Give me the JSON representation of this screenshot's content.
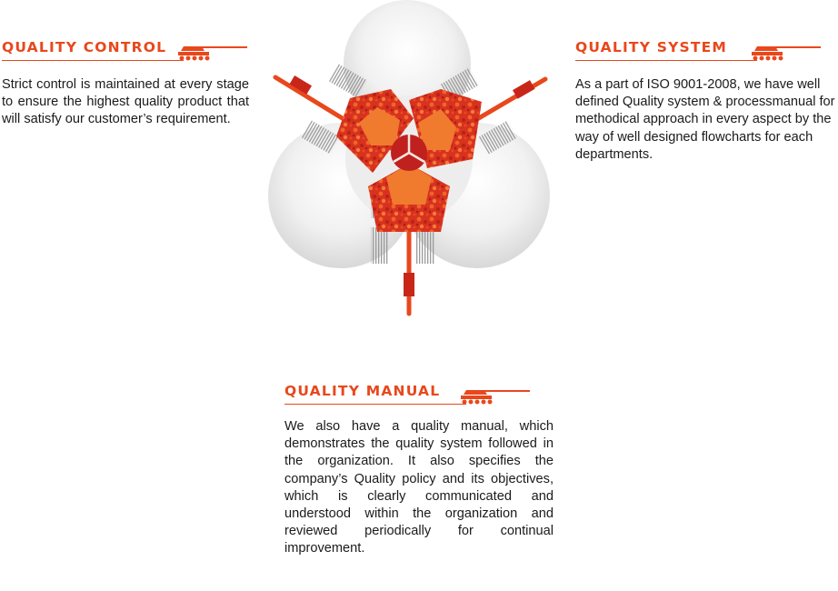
{
  "colors": {
    "accent": "#e8481c",
    "accent_dark": "#c9261a",
    "camo_light": "#f26a2a",
    "petal_core": "#f07a2e",
    "center_red": "#c0211f",
    "shadow_gray": "#e4e4e4",
    "stripe_gray": "#9a9a9a"
  },
  "icons": [
    "tank-icon",
    "shell-emblem"
  ],
  "quality_control": {
    "heading": "QUALITY CONTROL",
    "text": "Strict control is maintained at every stage to ensure the highest quality product that will satisfy our customer’s requirement."
  },
  "quality_system": {
    "heading": "QUALITY SYSTEM",
    "text": "As a part of ISO 9001-2008, we have well defined Quality system & processmanual for methodical approach in every aspect by the way of well designed flowcharts for each departments."
  },
  "quality_manual": {
    "heading": "QUALITY MANUAL",
    "text": "We also have a quality manual, which demonstrates the quality system followed in the organization. It also specifies the company’s Quality policy and its objectives, which is clearly communicated and understood within the organization and reviewed periodically for  continual improvement."
  }
}
